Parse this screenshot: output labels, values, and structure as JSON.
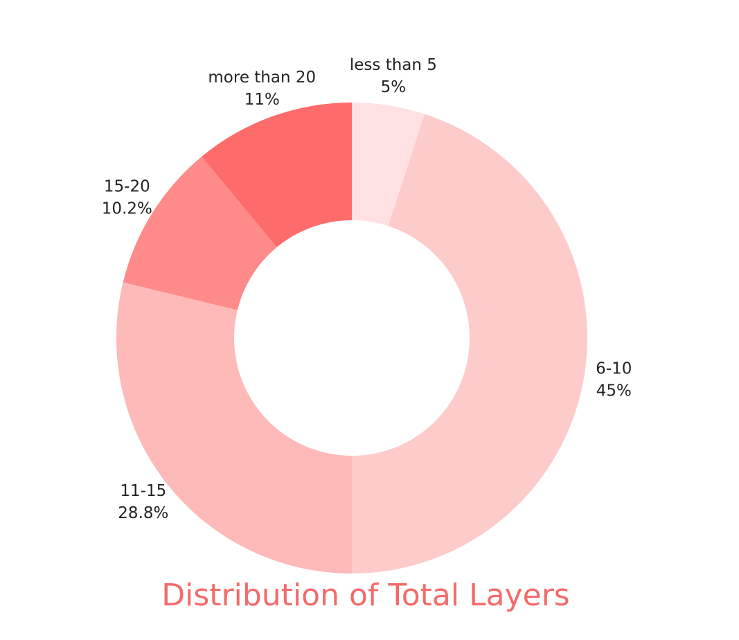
{
  "chart_data": {
    "type": "donut",
    "title": "Distribution of Total Layers",
    "categories": [
      "less than 5",
      "6-10",
      "11-15",
      "15-20",
      "more than 20"
    ],
    "values": [
      5,
      45,
      28.8,
      10.2,
      11
    ],
    "value_labels": [
      "5%",
      "45%",
      "28.8%",
      "10.2%",
      "11%"
    ],
    "colors": [
      "#ffe1e4",
      "#fecbcb",
      "#feb9b9",
      "#fe8a8a",
      "#fe6b6b"
    ]
  }
}
